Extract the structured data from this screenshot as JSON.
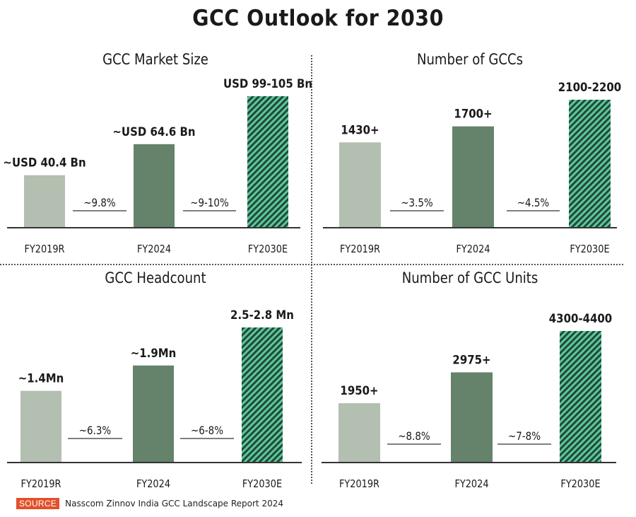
{
  "title": "GCC Outlook for 2030",
  "source": {
    "label": "SOURCE",
    "text": "Nasscom Zinnov India GCC Landscape Report 2024"
  },
  "colors": {
    "historic_bar": "#b3bfb0",
    "current_bar": "#64836a",
    "forecast_hatch_dark": "#1f4a3a",
    "forecast_hatch_light": "#5fc79a",
    "axis": "#333333",
    "source_badge": "#e2512b"
  },
  "chart_data": [
    {
      "type": "bar",
      "title": "GCC Market Size",
      "categories": [
        "FY2019R",
        "FY2024",
        "FY2030E"
      ],
      "values": [
        40.4,
        64.6,
        102
      ],
      "value_labels": [
        "~USD 40.4 Bn",
        "~USD 64.6 Bn",
        "USD 99-105 Bn"
      ],
      "unit": "USD Bn",
      "cagr_labels": [
        "~9.8%",
        "~9-10%"
      ],
      "styles": [
        "historic",
        "current",
        "forecast-hatched"
      ],
      "xlabel": "",
      "ylabel": "",
      "grid": false
    },
    {
      "type": "bar",
      "title": "Number of GCCs",
      "categories": [
        "FY2019R",
        "FY2024",
        "FY2030E"
      ],
      "values": [
        1430,
        1700,
        2150
      ],
      "value_labels": [
        "1430+",
        "1700+",
        "2100-2200"
      ],
      "unit": "count",
      "cagr_labels": [
        "~3.5%",
        "~4.5%"
      ],
      "styles": [
        "historic",
        "current",
        "forecast-hatched"
      ],
      "xlabel": "",
      "ylabel": "",
      "grid": false
    },
    {
      "type": "bar",
      "title": "GCC Headcount",
      "categories": [
        "FY2019R",
        "FY2024",
        "FY2030E"
      ],
      "values": [
        1.4,
        1.9,
        2.65
      ],
      "value_labels": [
        "~1.4Mn",
        "~1.9Mn",
        "2.5-2.8 Mn"
      ],
      "unit": "Mn",
      "cagr_labels": [
        "~6.3%",
        "~6-8%"
      ],
      "styles": [
        "historic",
        "current",
        "forecast-hatched"
      ],
      "xlabel": "",
      "ylabel": "",
      "grid": false
    },
    {
      "type": "bar",
      "title": "Number of GCC Units",
      "categories": [
        "FY2019R",
        "FY2024",
        "FY2030E"
      ],
      "values": [
        1950,
        2975,
        4350
      ],
      "value_labels": [
        "1950+",
        "2975+",
        "4300-4400"
      ],
      "unit": "count",
      "cagr_labels": [
        "~8.8%",
        "~7-8%"
      ],
      "styles": [
        "historic",
        "current",
        "forecast-hatched"
      ],
      "xlabel": "",
      "ylabel": "",
      "grid": false
    }
  ]
}
